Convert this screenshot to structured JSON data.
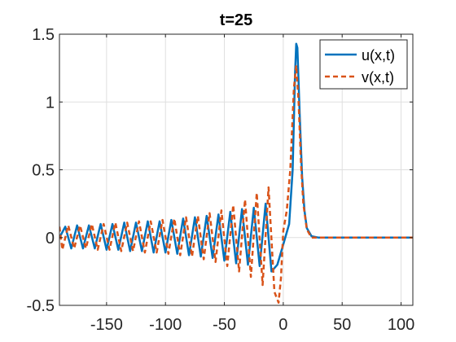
{
  "chart_data": {
    "type": "line",
    "title": "t=25",
    "xlabel": "",
    "ylabel": "",
    "xlim": [
      -190,
      110
    ],
    "ylim": [
      -0.5,
      1.5
    ],
    "xticks": [
      -150,
      -100,
      -50,
      0,
      50,
      100
    ],
    "yticks": [
      -0.5,
      0,
      0.5,
      1,
      1.5
    ],
    "xtick_labels": [
      "-150",
      "-100",
      "-50",
      "0",
      "50",
      "100"
    ],
    "ytick_labels": [
      "-0.5",
      "0",
      "0.5",
      "1",
      "1.5"
    ],
    "grid": true,
    "legend_position": "top-right",
    "series": [
      {
        "name": "u(x,t)",
        "color": "#0072BD",
        "style": "solid",
        "points": [
          [
            -190,
            0.0
          ],
          [
            -185,
            0.08
          ],
          [
            -180,
            -0.08
          ],
          [
            -175,
            0.09
          ],
          [
            -170,
            -0.08
          ],
          [
            -165,
            0.09
          ],
          [
            -160,
            -0.08
          ],
          [
            -155,
            0.1
          ],
          [
            -150,
            -0.09
          ],
          [
            -145,
            0.1
          ],
          [
            -140,
            -0.09
          ],
          [
            -135,
            0.11
          ],
          [
            -130,
            -0.1
          ],
          [
            -125,
            0.11
          ],
          [
            -120,
            -0.1
          ],
          [
            -115,
            0.12
          ],
          [
            -110,
            -0.11
          ],
          [
            -105,
            0.12
          ],
          [
            -100,
            -0.11
          ],
          [
            -95,
            0.13
          ],
          [
            -90,
            -0.12
          ],
          [
            -85,
            0.14
          ],
          [
            -80,
            -0.13
          ],
          [
            -75,
            0.15
          ],
          [
            -70,
            -0.14
          ],
          [
            -65,
            0.16
          ],
          [
            -60,
            -0.15
          ],
          [
            -55,
            0.17
          ],
          [
            -50,
            -0.17
          ],
          [
            -45,
            0.19
          ],
          [
            -40,
            -0.19
          ],
          [
            -35,
            0.21
          ],
          [
            -30,
            -0.2
          ],
          [
            -25,
            0.22
          ],
          [
            -20,
            -0.21
          ],
          [
            -15,
            0.25
          ],
          [
            -10,
            -0.25
          ],
          [
            -5,
            -0.2
          ],
          [
            0,
            -0.05
          ],
          [
            5,
            0.1
          ],
          [
            8,
            0.5
          ],
          [
            10,
            1.2
          ],
          [
            11,
            1.43
          ],
          [
            12,
            1.4
          ],
          [
            14,
            0.9
          ],
          [
            16,
            0.45
          ],
          [
            18,
            0.2
          ],
          [
            20,
            0.07
          ],
          [
            24,
            0.01
          ],
          [
            30,
            0.0
          ],
          [
            50,
            0.0
          ],
          [
            80,
            0.0
          ],
          [
            110,
            0.0
          ]
        ]
      },
      {
        "name": "v(x,t)",
        "color": "#D95319",
        "style": "dashed",
        "points": [
          [
            -190,
            0.08
          ],
          [
            -187.5,
            -0.09
          ],
          [
            -182.5,
            0.09
          ],
          [
            -177.5,
            -0.08
          ],
          [
            -172.5,
            0.09
          ],
          [
            -167.5,
            -0.08
          ],
          [
            -162.5,
            0.1
          ],
          [
            -157.5,
            -0.09
          ],
          [
            -152.5,
            0.1
          ],
          [
            -147.5,
            -0.09
          ],
          [
            -142.5,
            0.11
          ],
          [
            -137.5,
            -0.1
          ],
          [
            -132.5,
            0.11
          ],
          [
            -127.5,
            -0.1
          ],
          [
            -122.5,
            0.12
          ],
          [
            -117.5,
            -0.11
          ],
          [
            -112.5,
            0.12
          ],
          [
            -107.5,
            -0.11
          ],
          [
            -102.5,
            0.13
          ],
          [
            -97.5,
            -0.12
          ],
          [
            -92.5,
            0.14
          ],
          [
            -87.5,
            -0.13
          ],
          [
            -82.5,
            0.15
          ],
          [
            -77.5,
            -0.14
          ],
          [
            -72.5,
            0.16
          ],
          [
            -67.5,
            -0.16
          ],
          [
            -62.5,
            0.18
          ],
          [
            -57.5,
            -0.18
          ],
          [
            -52.5,
            0.2
          ],
          [
            -47.5,
            -0.21
          ],
          [
            -42.5,
            0.24
          ],
          [
            -37.5,
            -0.25
          ],
          [
            -32.5,
            0.28
          ],
          [
            -27.5,
            -0.29
          ],
          [
            -22.5,
            0.33
          ],
          [
            -17.5,
            -0.35
          ],
          [
            -12.5,
            0.37
          ],
          [
            -7.5,
            -0.4
          ],
          [
            -4,
            -0.48
          ],
          [
            -2,
            -0.3
          ],
          [
            0,
            0.05
          ],
          [
            3,
            0.2
          ],
          [
            6,
            0.5
          ],
          [
            9,
            1.1
          ],
          [
            11,
            1.27
          ],
          [
            13,
            1.0
          ],
          [
            15,
            0.55
          ],
          [
            17,
            0.25
          ],
          [
            20,
            0.06
          ],
          [
            24,
            0.0
          ],
          [
            30,
            0.0
          ],
          [
            50,
            0.0
          ],
          [
            80,
            0.0
          ],
          [
            110,
            0.0
          ]
        ]
      }
    ]
  }
}
